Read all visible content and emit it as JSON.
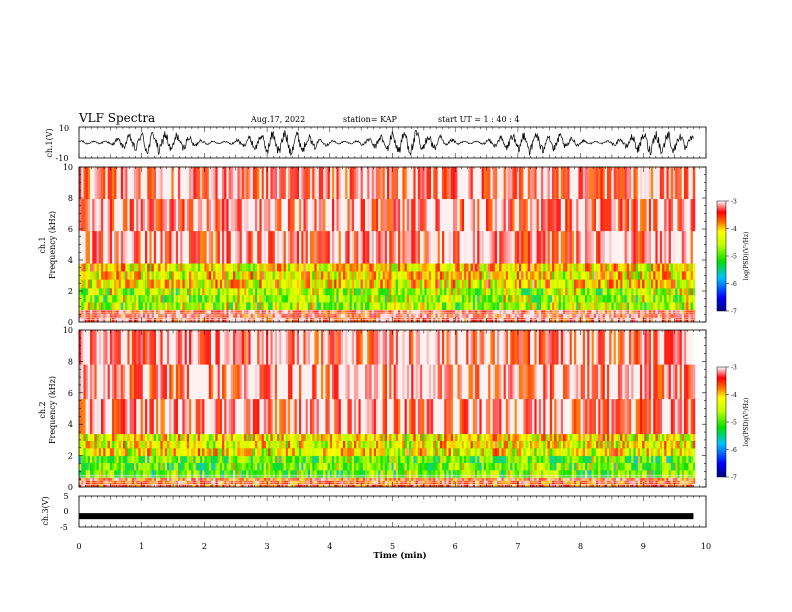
{
  "header": {
    "title": "VLF Spectra",
    "date": "Aug.17, 2022",
    "station": "station= KAP",
    "start_ut": "start  UT =   1 : 40 : 4"
  },
  "chart_data": [
    {
      "type": "line",
      "panel": "ch1-waveform",
      "ylabel": "ch.1(V)",
      "ytick_labels": [
        "10",
        "-10"
      ],
      "ylim": [
        -10,
        10
      ],
      "xlim": [
        0,
        10
      ],
      "trace_range_min": [
        0,
        9.8
      ],
      "color": "#000000"
    },
    {
      "type": "heatmap",
      "panel": "ch1-spectrogram",
      "ylabel": "ch.1\nFrequency (kHz)",
      "ylabel_lines": [
        "ch.1",
        "Frequency (kHz)"
      ],
      "ytick_labels": [
        "0",
        "2",
        "4",
        "6",
        "8",
        "10"
      ],
      "ylim": [
        0,
        10
      ],
      "xlim": [
        0,
        10
      ],
      "data_extent_min": [
        0,
        9.8
      ],
      "colorbar": {
        "label": "log(PSD)(V²/Hz)",
        "ticks": [
          "-3",
          "-4",
          "-5",
          "-6",
          "-7"
        ],
        "range": [
          -7,
          -3
        ]
      },
      "intensity_bands_khz": [
        {
          "from": 0.0,
          "to": 0.8,
          "level": -3.4
        },
        {
          "from": 0.8,
          "to": 2.2,
          "level": -4.6
        },
        {
          "from": 2.2,
          "to": 3.8,
          "level": -4.1
        },
        {
          "from": 3.8,
          "to": 10.0,
          "level": -3.2
        }
      ]
    },
    {
      "type": "heatmap",
      "panel": "ch2-spectrogram",
      "ylabel": "ch.2\nFrequency (kHz)",
      "ylabel_lines": [
        "ch.2",
        "Frequency (kHz)"
      ],
      "ytick_labels": [
        "0",
        "2",
        "4",
        "6",
        "8",
        "10"
      ],
      "ylim": [
        0,
        10
      ],
      "xlim": [
        0,
        10
      ],
      "data_extent_min": [
        0,
        9.8
      ],
      "colorbar": {
        "label": "log(PSD)(V²/Hz)",
        "ticks": [
          "-3",
          "-4",
          "-5",
          "-6",
          "-7"
        ],
        "range": [
          -7,
          -3
        ]
      },
      "intensity_bands_khz": [
        {
          "from": 0.0,
          "to": 0.6,
          "level": -3.6
        },
        {
          "from": 0.6,
          "to": 2.0,
          "level": -4.8
        },
        {
          "from": 2.0,
          "to": 3.4,
          "level": -4.2
        },
        {
          "from": 3.4,
          "to": 10.0,
          "level": -3.2
        }
      ]
    },
    {
      "type": "line",
      "panel": "ch3-waveform",
      "ylabel": "ch.3(V)",
      "ytick_labels": [
        "5",
        "0",
        "-5"
      ],
      "ylim": [
        -5,
        5
      ],
      "xlim": [
        0,
        10
      ],
      "trace_range_min": [
        0,
        9.8
      ],
      "trace_level_v": -1.5,
      "xlabel": "Time (min)",
      "xtick_labels": [
        "0",
        "1",
        "2",
        "3",
        "4",
        "5",
        "6",
        "7",
        "8",
        "9",
        "10"
      ],
      "color": "#000000"
    }
  ]
}
